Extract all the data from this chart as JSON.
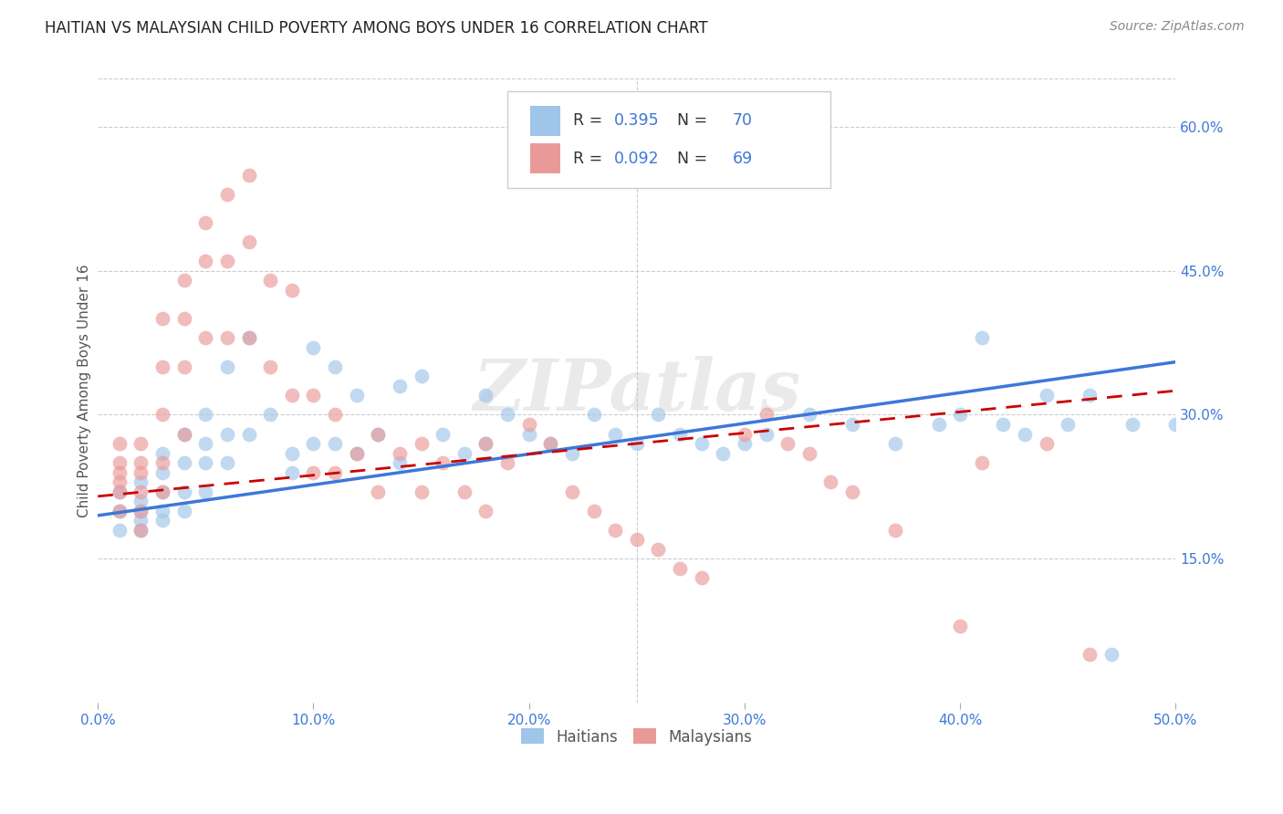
{
  "title": "HAITIAN VS MALAYSIAN CHILD POVERTY AMONG BOYS UNDER 16 CORRELATION CHART",
  "source": "Source: ZipAtlas.com",
  "ylabel": "Child Poverty Among Boys Under 16",
  "xlim": [
    0.0,
    0.5
  ],
  "ylim": [
    0.0,
    0.65
  ],
  "xtick_labels": [
    "0.0%",
    "10.0%",
    "20.0%",
    "30.0%",
    "40.0%",
    "50.0%"
  ],
  "xtick_values": [
    0.0,
    0.1,
    0.2,
    0.3,
    0.4,
    0.5
  ],
  "ytick_labels": [
    "15.0%",
    "30.0%",
    "45.0%",
    "60.0%"
  ],
  "ytick_values": [
    0.15,
    0.3,
    0.45,
    0.6
  ],
  "haitian_color": "#9fc5e8",
  "malaysian_color": "#ea9999",
  "haitian_line_color": "#3c78d8",
  "malaysian_line_color": "#cc0000",
  "R_haitian": 0.395,
  "N_haitian": 70,
  "R_malaysian": 0.092,
  "N_malaysian": 69,
  "legend_label_haitian": "Haitians",
  "legend_label_malaysian": "Malaysians",
  "watermark": "ZIPatlas",
  "haitian_line_x0": 0.0,
  "haitian_line_y0": 0.195,
  "haitian_line_x1": 0.5,
  "haitian_line_y1": 0.355,
  "malaysian_line_x0": 0.0,
  "malaysian_line_y0": 0.215,
  "malaysian_line_x1": 0.5,
  "malaysian_line_y1": 0.325,
  "haitian_x": [
    0.01,
    0.01,
    0.01,
    0.02,
    0.02,
    0.02,
    0.02,
    0.02,
    0.03,
    0.03,
    0.03,
    0.03,
    0.03,
    0.04,
    0.04,
    0.04,
    0.04,
    0.05,
    0.05,
    0.05,
    0.05,
    0.06,
    0.06,
    0.06,
    0.07,
    0.07,
    0.08,
    0.09,
    0.09,
    0.1,
    0.1,
    0.11,
    0.11,
    0.12,
    0.12,
    0.13,
    0.14,
    0.14,
    0.15,
    0.16,
    0.17,
    0.18,
    0.18,
    0.19,
    0.2,
    0.21,
    0.22,
    0.23,
    0.24,
    0.25,
    0.26,
    0.27,
    0.28,
    0.29,
    0.3,
    0.31,
    0.33,
    0.35,
    0.37,
    0.39,
    0.4,
    0.41,
    0.42,
    0.43,
    0.44,
    0.45,
    0.46,
    0.47,
    0.48,
    0.5
  ],
  "haitian_y": [
    0.22,
    0.2,
    0.18,
    0.23,
    0.21,
    0.2,
    0.19,
    0.18,
    0.26,
    0.24,
    0.22,
    0.2,
    0.19,
    0.28,
    0.25,
    0.22,
    0.2,
    0.3,
    0.27,
    0.25,
    0.22,
    0.35,
    0.28,
    0.25,
    0.38,
    0.28,
    0.3,
    0.26,
    0.24,
    0.37,
    0.27,
    0.35,
    0.27,
    0.32,
    0.26,
    0.28,
    0.33,
    0.25,
    0.34,
    0.28,
    0.26,
    0.32,
    0.27,
    0.3,
    0.28,
    0.27,
    0.26,
    0.3,
    0.28,
    0.27,
    0.3,
    0.28,
    0.27,
    0.26,
    0.27,
    0.28,
    0.3,
    0.29,
    0.27,
    0.29,
    0.3,
    0.38,
    0.29,
    0.28,
    0.32,
    0.29,
    0.32,
    0.05,
    0.29,
    0.29
  ],
  "malaysian_x": [
    0.01,
    0.01,
    0.01,
    0.01,
    0.01,
    0.01,
    0.02,
    0.02,
    0.02,
    0.02,
    0.02,
    0.02,
    0.03,
    0.03,
    0.03,
    0.03,
    0.03,
    0.04,
    0.04,
    0.04,
    0.04,
    0.05,
    0.05,
    0.05,
    0.06,
    0.06,
    0.06,
    0.07,
    0.07,
    0.07,
    0.08,
    0.08,
    0.09,
    0.09,
    0.1,
    0.1,
    0.11,
    0.11,
    0.12,
    0.13,
    0.13,
    0.14,
    0.15,
    0.15,
    0.16,
    0.17,
    0.18,
    0.18,
    0.19,
    0.2,
    0.21,
    0.22,
    0.23,
    0.24,
    0.25,
    0.26,
    0.27,
    0.28,
    0.3,
    0.31,
    0.32,
    0.33,
    0.34,
    0.35,
    0.37,
    0.4,
    0.41,
    0.44,
    0.46
  ],
  "malaysian_y": [
    0.27,
    0.25,
    0.24,
    0.23,
    0.22,
    0.2,
    0.27,
    0.25,
    0.24,
    0.22,
    0.2,
    0.18,
    0.4,
    0.35,
    0.3,
    0.25,
    0.22,
    0.44,
    0.4,
    0.35,
    0.28,
    0.5,
    0.46,
    0.38,
    0.53,
    0.46,
    0.38,
    0.55,
    0.48,
    0.38,
    0.44,
    0.35,
    0.43,
    0.32,
    0.32,
    0.24,
    0.3,
    0.24,
    0.26,
    0.28,
    0.22,
    0.26,
    0.27,
    0.22,
    0.25,
    0.22,
    0.27,
    0.2,
    0.25,
    0.29,
    0.27,
    0.22,
    0.2,
    0.18,
    0.17,
    0.16,
    0.14,
    0.13,
    0.28,
    0.3,
    0.27,
    0.26,
    0.23,
    0.22,
    0.18,
    0.08,
    0.25,
    0.27,
    0.05
  ]
}
